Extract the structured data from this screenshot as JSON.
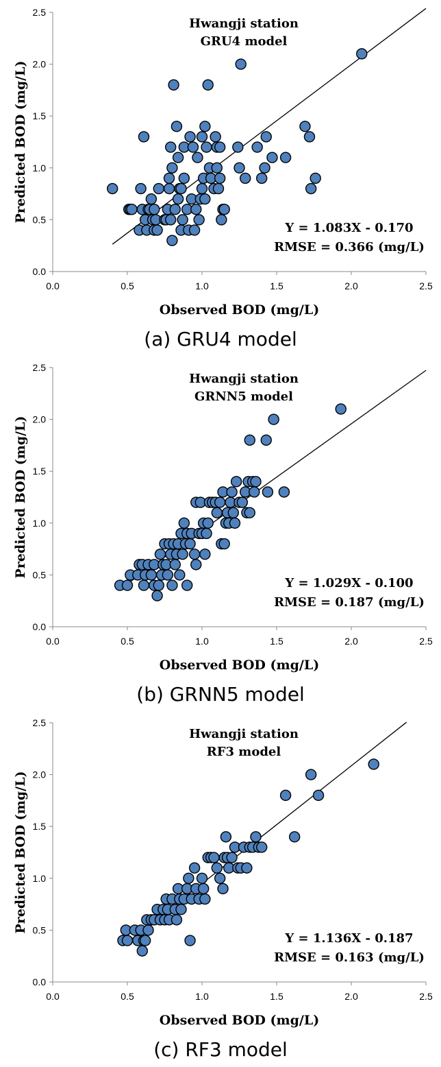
{
  "chart_data": [
    {
      "type": "scatter",
      "title": "Hwangji station",
      "subtitle": "GRU4 model",
      "xlabel": "Observed BOD (mg/L)",
      "ylabel": "Predicted BOD (mg/L)",
      "xlim": [
        0,
        2.5
      ],
      "ylim": [
        0,
        2.5
      ],
      "xticks": [
        "0.0",
        "0.5",
        "1.0",
        "1.5",
        "2.0",
        "2.5"
      ],
      "yticks": [
        "0.0",
        "0.5",
        "1.0",
        "1.5",
        "2.0",
        "2.5"
      ],
      "equation": "Y = 1.083X - 0.170",
      "rmse": "RMSE = 0.366 (mg/L)",
      "caption": "(a) GRU4 model",
      "marker_color": "#4F81BD",
      "fit": {
        "slope": 1.083,
        "intercept": -0.17,
        "x_range": [
          0.4,
          2.5
        ]
      },
      "points": [
        [
          0.4,
          0.8
        ],
        [
          0.51,
          0.6
        ],
        [
          0.52,
          0.6
        ],
        [
          0.53,
          0.6
        ],
        [
          0.58,
          0.4
        ],
        [
          0.59,
          0.8
        ],
        [
          0.6,
          0.6
        ],
        [
          0.61,
          1.3
        ],
        [
          0.62,
          0.5
        ],
        [
          0.63,
          0.4
        ],
        [
          0.64,
          0.6
        ],
        [
          0.65,
          0.6
        ],
        [
          0.66,
          0.7
        ],
        [
          0.67,
          0.5
        ],
        [
          0.68,
          0.4
        ],
        [
          0.68,
          0.6
        ],
        [
          0.69,
          0.5
        ],
        [
          0.7,
          0.4
        ],
        [
          0.71,
          0.8
        ],
        [
          0.75,
          0.5
        ],
        [
          0.76,
          0.5
        ],
        [
          0.77,
          0.6
        ],
        [
          0.78,
          0.8
        ],
        [
          0.78,
          0.9
        ],
        [
          0.79,
          1.2
        ],
        [
          0.79,
          0.5
        ],
        [
          0.8,
          0.3
        ],
        [
          0.8,
          1.0
        ],
        [
          0.81,
          1.8
        ],
        [
          0.82,
          0.6
        ],
        [
          0.83,
          1.4
        ],
        [
          0.84,
          0.7
        ],
        [
          0.84,
          1.1
        ],
        [
          0.85,
          0.8
        ],
        [
          0.86,
          0.4
        ],
        [
          0.86,
          0.8
        ],
        [
          0.87,
          0.5
        ],
        [
          0.88,
          1.2
        ],
        [
          0.88,
          0.9
        ],
        [
          0.9,
          0.6
        ],
        [
          0.91,
          0.4
        ],
        [
          0.92,
          1.3
        ],
        [
          0.93,
          0.7
        ],
        [
          0.94,
          1.2
        ],
        [
          0.95,
          0.4
        ],
        [
          0.96,
          0.6
        ],
        [
          0.97,
          1.1
        ],
        [
          0.98,
          0.5
        ],
        [
          0.99,
          0.7
        ],
        [
          1.0,
          1.3
        ],
        [
          1.0,
          0.8
        ],
        [
          1.01,
          0.9
        ],
        [
          1.02,
          1.4
        ],
        [
          1.02,
          0.7
        ],
        [
          1.03,
          1.2
        ],
        [
          1.04,
          1.8
        ],
        [
          1.05,
          1.0
        ],
        [
          1.06,
          0.9
        ],
        [
          1.08,
          0.8
        ],
        [
          1.09,
          1.3
        ],
        [
          1.1,
          1.2
        ],
        [
          1.1,
          1.0
        ],
        [
          1.11,
          0.8
        ],
        [
          1.12,
          0.9
        ],
        [
          1.12,
          1.2
        ],
        [
          1.13,
          0.5
        ],
        [
          1.14,
          0.6
        ],
        [
          1.15,
          0.6
        ],
        [
          1.24,
          1.2
        ],
        [
          1.25,
          1.0
        ],
        [
          1.26,
          2.0
        ],
        [
          1.29,
          0.9
        ],
        [
          1.37,
          1.2
        ],
        [
          1.4,
          0.9
        ],
        [
          1.42,
          1.0
        ],
        [
          1.43,
          1.3
        ],
        [
          1.47,
          1.1
        ],
        [
          1.56,
          1.1
        ],
        [
          1.69,
          1.4
        ],
        [
          1.72,
          1.3
        ],
        [
          1.73,
          0.8
        ],
        [
          1.76,
          0.9
        ],
        [
          2.07,
          2.1
        ]
      ]
    },
    {
      "type": "scatter",
      "title": "Hwangji station",
      "subtitle": "GRNN5 model",
      "xlabel": "Observed BOD (mg/L)",
      "ylabel": "Predicted BOD (mg/L)",
      "xlim": [
        0,
        2.5
      ],
      "ylim": [
        0,
        2.5
      ],
      "xticks": [
        "0.0",
        "0.5",
        "1.0",
        "1.5",
        "2.0",
        "2.5"
      ],
      "yticks": [
        "0.0",
        "0.5",
        "1.0",
        "1.5",
        "2.0",
        "2.5"
      ],
      "equation": "Y = 1.029X - 0.100",
      "rmse": "RMSE = 0.187 (mg/L)",
      "caption": "(b) GRNN5 model",
      "marker_color": "#4F81BD",
      "fit": {
        "slope": 1.029,
        "intercept": -0.1,
        "x_range": [
          0.45,
          2.5
        ]
      },
      "points": [
        [
          0.45,
          0.4
        ],
        [
          0.5,
          0.4
        ],
        [
          0.52,
          0.5
        ],
        [
          0.57,
          0.5
        ],
        [
          0.58,
          0.6
        ],
        [
          0.6,
          0.6
        ],
        [
          0.61,
          0.4
        ],
        [
          0.62,
          0.5
        ],
        [
          0.64,
          0.6
        ],
        [
          0.66,
          0.5
        ],
        [
          0.68,
          0.4
        ],
        [
          0.68,
          0.6
        ],
        [
          0.7,
          0.3
        ],
        [
          0.71,
          0.4
        ],
        [
          0.72,
          0.7
        ],
        [
          0.73,
          0.5
        ],
        [
          0.74,
          0.6
        ],
        [
          0.75,
          0.8
        ],
        [
          0.76,
          0.6
        ],
        [
          0.77,
          0.5
        ],
        [
          0.78,
          0.8
        ],
        [
          0.79,
          0.7
        ],
        [
          0.8,
          0.4
        ],
        [
          0.81,
          0.8
        ],
        [
          0.82,
          0.6
        ],
        [
          0.83,
          0.7
        ],
        [
          0.84,
          0.8
        ],
        [
          0.85,
          0.5
        ],
        [
          0.86,
          0.9
        ],
        [
          0.87,
          0.7
        ],
        [
          0.88,
          1.0
        ],
        [
          0.89,
          0.8
        ],
        [
          0.9,
          0.4
        ],
        [
          0.9,
          0.9
        ],
        [
          0.92,
          0.8
        ],
        [
          0.93,
          0.9
        ],
        [
          0.95,
          0.7
        ],
        [
          0.96,
          1.2
        ],
        [
          0.96,
          0.6
        ],
        [
          0.98,
          0.9
        ],
        [
          0.99,
          1.2
        ],
        [
          1.0,
          0.9
        ],
        [
          1.01,
          1.0
        ],
        [
          1.02,
          0.7
        ],
        [
          1.03,
          0.9
        ],
        [
          1.04,
          1.0
        ],
        [
          1.05,
          1.2
        ],
        [
          1.07,
          1.2
        ],
        [
          1.09,
          1.2
        ],
        [
          1.1,
          1.1
        ],
        [
          1.12,
          1.2
        ],
        [
          1.13,
          0.8
        ],
        [
          1.14,
          1.3
        ],
        [
          1.15,
          0.8
        ],
        [
          1.16,
          1.0
        ],
        [
          1.17,
          1.1
        ],
        [
          1.18,
          1.0
        ],
        [
          1.19,
          1.2
        ],
        [
          1.2,
          1.3
        ],
        [
          1.21,
          1.1
        ],
        [
          1.22,
          1.0
        ],
        [
          1.23,
          1.4
        ],
        [
          1.25,
          1.2
        ],
        [
          1.27,
          1.2
        ],
        [
          1.29,
          1.3
        ],
        [
          1.3,
          1.1
        ],
        [
          1.31,
          1.4
        ],
        [
          1.32,
          1.1
        ],
        [
          1.32,
          1.8
        ],
        [
          1.34,
          1.4
        ],
        [
          1.35,
          1.3
        ],
        [
          1.36,
          1.4
        ],
        [
          1.43,
          1.8
        ],
        [
          1.44,
          1.3
        ],
        [
          1.48,
          2.0
        ],
        [
          1.55,
          1.3
        ],
        [
          1.93,
          2.1
        ]
      ]
    },
    {
      "type": "scatter",
      "title": "Hwangji station",
      "subtitle": "RF3 model",
      "xlabel": "Observed BOD (mg/L)",
      "ylabel": "Predicted BOD (mg/L)",
      "xlim": [
        0,
        2.5
      ],
      "ylim": [
        0,
        2.5
      ],
      "xticks": [
        "0.0",
        "0.5",
        "1.0",
        "1.5",
        "2.0",
        "2.5"
      ],
      "yticks": [
        "0.0",
        "0.5",
        "1.0",
        "1.5",
        "2.0",
        "2.5"
      ],
      "equation": "Y = 1.136X - 0.187",
      "rmse": "RMSE = 0.163 (mg/L)",
      "caption": "(c) RF3 model",
      "marker_color": "#4F81BD",
      "fit": {
        "slope": 1.136,
        "intercept": -0.187,
        "x_range": [
          0.48,
          2.37
        ]
      },
      "points": [
        [
          0.47,
          0.4
        ],
        [
          0.49,
          0.5
        ],
        [
          0.5,
          0.4
        ],
        [
          0.55,
          0.5
        ],
        [
          0.57,
          0.4
        ],
        [
          0.59,
          0.5
        ],
        [
          0.6,
          0.3
        ],
        [
          0.61,
          0.4
        ],
        [
          0.62,
          0.4
        ],
        [
          0.63,
          0.6
        ],
        [
          0.64,
          0.5
        ],
        [
          0.66,
          0.6
        ],
        [
          0.68,
          0.6
        ],
        [
          0.7,
          0.7
        ],
        [
          0.72,
          0.6
        ],
        [
          0.74,
          0.7
        ],
        [
          0.75,
          0.6
        ],
        [
          0.76,
          0.8
        ],
        [
          0.77,
          0.7
        ],
        [
          0.78,
          0.6
        ],
        [
          0.8,
          0.8
        ],
        [
          0.82,
          0.7
        ],
        [
          0.83,
          0.6
        ],
        [
          0.84,
          0.9
        ],
        [
          0.85,
          0.8
        ],
        [
          0.86,
          0.7
        ],
        [
          0.88,
          0.8
        ],
        [
          0.9,
          0.9
        ],
        [
          0.91,
          1.0
        ],
        [
          0.92,
          0.4
        ],
        [
          0.93,
          0.8
        ],
        [
          0.95,
          1.1
        ],
        [
          0.96,
          0.9
        ],
        [
          0.98,
          0.8
        ],
        [
          1.0,
          1.0
        ],
        [
          1.01,
          0.9
        ],
        [
          1.02,
          0.8
        ],
        [
          1.04,
          1.2
        ],
        [
          1.06,
          1.2
        ],
        [
          1.08,
          1.2
        ],
        [
          1.1,
          1.1
        ],
        [
          1.12,
          1.0
        ],
        [
          1.14,
          0.9
        ],
        [
          1.15,
          1.2
        ],
        [
          1.16,
          1.4
        ],
        [
          1.17,
          1.2
        ],
        [
          1.18,
          1.1
        ],
        [
          1.2,
          1.2
        ],
        [
          1.22,
          1.3
        ],
        [
          1.24,
          1.1
        ],
        [
          1.26,
          1.1
        ],
        [
          1.28,
          1.3
        ],
        [
          1.3,
          1.1
        ],
        [
          1.32,
          1.3
        ],
        [
          1.34,
          1.3
        ],
        [
          1.36,
          1.4
        ],
        [
          1.38,
          1.3
        ],
        [
          1.4,
          1.3
        ],
        [
          1.56,
          1.8
        ],
        [
          1.62,
          1.4
        ],
        [
          1.73,
          2.0
        ],
        [
          1.78,
          1.8
        ],
        [
          2.15,
          2.1
        ]
      ]
    }
  ]
}
